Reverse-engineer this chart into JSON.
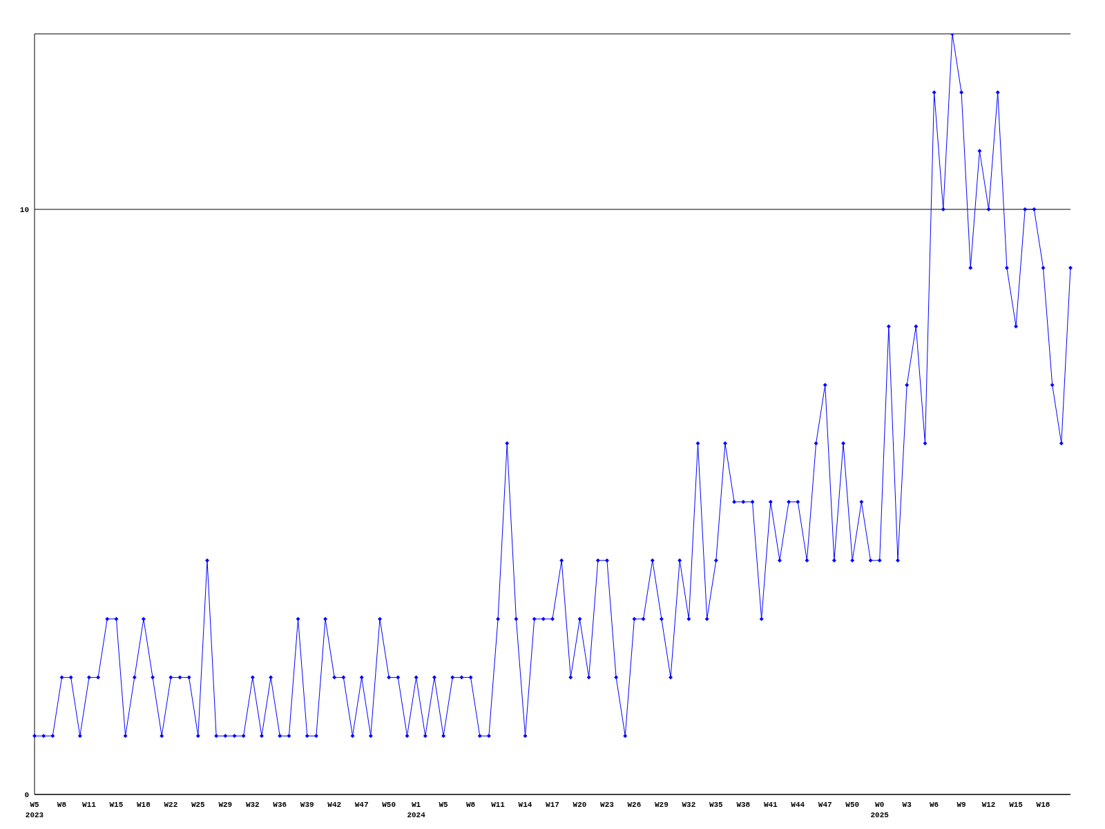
{
  "chart_data": {
    "type": "line",
    "categories": [
      "W5\n2023",
      null,
      null,
      "W8",
      null,
      null,
      "W11",
      null,
      null,
      "W15",
      null,
      null,
      "W18",
      null,
      null,
      "W22",
      null,
      null,
      "W25",
      null,
      null,
      "W29",
      null,
      null,
      "W32",
      null,
      null,
      "W36",
      null,
      null,
      "W39",
      null,
      null,
      "W42",
      null,
      null,
      "W47",
      null,
      null,
      "W50",
      null,
      null,
      "W1\n2024",
      null,
      null,
      "W5",
      null,
      null,
      "W8",
      null,
      null,
      "W11",
      null,
      null,
      "W14",
      null,
      null,
      "W17",
      null,
      null,
      "W20",
      null,
      null,
      "W23",
      null,
      null,
      "W26",
      null,
      null,
      "W29",
      null,
      null,
      "W32",
      null,
      null,
      "W35",
      null,
      null,
      "W38",
      null,
      null,
      "W41",
      null,
      null,
      "W44",
      null,
      null,
      "W47",
      null,
      null,
      "W50",
      null,
      null,
      "W0\n2025",
      null,
      null,
      "W3",
      null,
      null,
      "W6",
      null,
      null,
      "W9",
      null,
      null,
      "W12",
      null,
      null,
      "W15",
      null,
      null,
      "W18",
      null,
      null,
      null
    ],
    "series": [
      {
        "color": "#0000ff",
        "values": [
          1,
          1,
          1,
          2,
          2,
          1,
          2,
          2,
          3,
          3,
          1,
          2,
          3,
          2,
          1,
          2,
          2,
          2,
          1,
          4,
          1,
          1,
          1,
          1,
          2,
          1,
          2,
          1,
          1,
          3,
          1,
          1,
          3,
          2,
          2,
          1,
          2,
          1,
          3,
          2,
          2,
          1,
          2,
          1,
          2,
          1,
          2,
          2,
          2,
          1,
          1,
          3,
          6,
          3,
          1,
          3,
          3,
          3,
          4,
          2,
          3,
          2,
          4,
          4,
          2,
          1,
          3,
          3,
          4,
          3,
          2,
          4,
          3,
          6,
          3,
          4,
          6,
          5,
          5,
          5,
          3,
          5,
          4,
          5,
          5,
          4,
          6,
          7,
          4,
          6,
          4,
          5,
          4,
          4,
          8,
          4,
          7,
          8,
          6,
          12,
          10,
          13,
          12,
          9,
          11,
          10,
          12,
          9,
          8,
          10,
          10,
          9,
          7,
          6,
          9
        ]
      }
    ],
    "ylim": [
      0,
      13
    ],
    "yticks": [
      0,
      10
    ],
    "grid": "y",
    "marker": "diamond",
    "line_style": "solid"
  }
}
